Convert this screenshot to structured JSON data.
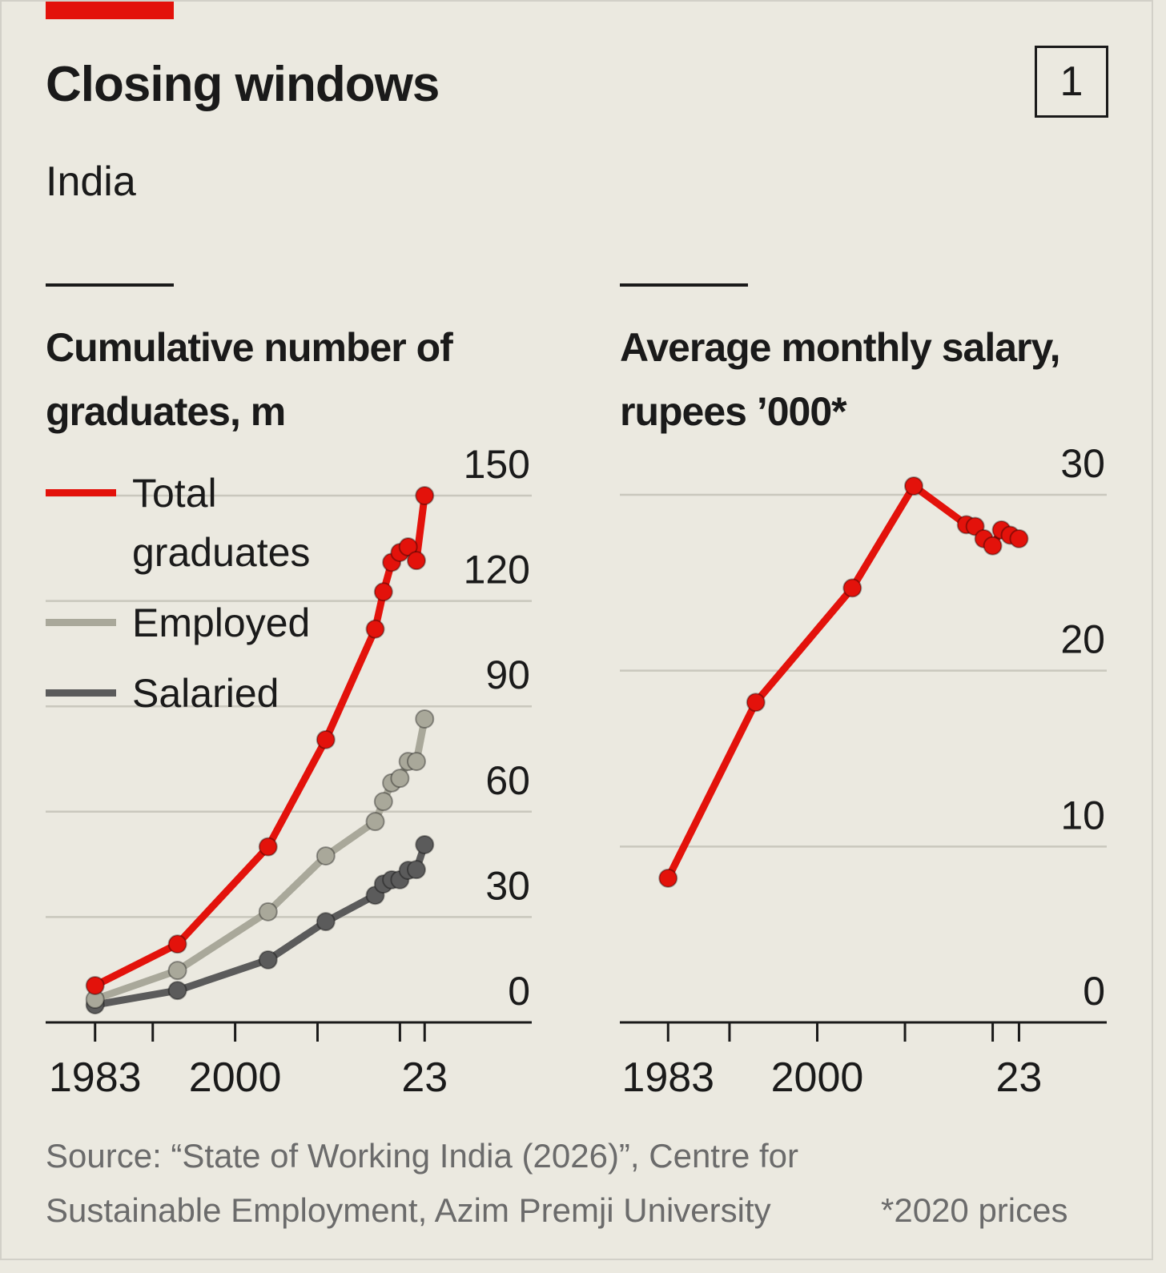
{
  "header": {
    "title": "Closing windows",
    "subtitle": "India",
    "number": "1"
  },
  "footer": {
    "source": "Source: “State of Working India (2026)”, Centre for Sustainable Employment, Azim Premji University",
    "note": "*2020 prices"
  },
  "chart_data": [
    {
      "type": "line",
      "title": "Cumulative number of graduates, m",
      "x": [
        1983,
        1993,
        2004,
        2011,
        2017,
        2018,
        2019,
        2020,
        2021,
        2022,
        2023
      ],
      "series": [
        {
          "name": "Total graduates",
          "color": "#e3120b",
          "values": [
            10.5,
            22.3,
            50,
            80.5,
            112,
            122.6,
            131,
            133.8,
            135.4,
            131.5,
            150
          ]
        },
        {
          "name": "Employed",
          "color": "#a9a89a",
          "values": [
            6.6,
            14.8,
            31.5,
            47.4,
            57.2,
            62.9,
            68.2,
            69.5,
            74.3,
            74.3,
            86.4
          ]
        },
        {
          "name": "Salaried",
          "color": "#5b5b5b",
          "values": [
            5,
            9.1,
            17.8,
            28.7,
            36.2,
            39.4,
            40.6,
            40.6,
            43.3,
            43.5,
            50.6
          ]
        }
      ],
      "xlim": [
        1977,
        2036
      ],
      "xticks": [
        1983,
        2000,
        {
          "value": 2023,
          "label": "23"
        }
      ],
      "minor_xticks": [
        1990,
        2010,
        2020
      ],
      "ylim": [
        0,
        150
      ],
      "yticks": [
        0,
        30,
        60,
        90,
        120,
        150
      ],
      "grid": true,
      "legend": "top-left"
    },
    {
      "type": "line",
      "title": "Average monthly salary, rupees ’000*",
      "x": [
        1983,
        1993,
        2004,
        2011,
        2017,
        2018,
        2019,
        2020,
        2021,
        2022,
        2023
      ],
      "series": [
        {
          "color": "#e3120b",
          "values": [
            8.2,
            18.2,
            24.7,
            30.5,
            28.3,
            28.2,
            27.5,
            27.1,
            28.0,
            27.7,
            27.5
          ]
        }
      ],
      "xlim": [
        1977.5,
        2033
      ],
      "xticks": [
        1983,
        2000,
        {
          "value": 2023,
          "label": "23"
        }
      ],
      "minor_xticks": [
        1990,
        2010,
        2020
      ],
      "ylim": [
        0,
        30
      ],
      "yticks": [
        0,
        10,
        20,
        30
      ],
      "grid": true
    }
  ]
}
